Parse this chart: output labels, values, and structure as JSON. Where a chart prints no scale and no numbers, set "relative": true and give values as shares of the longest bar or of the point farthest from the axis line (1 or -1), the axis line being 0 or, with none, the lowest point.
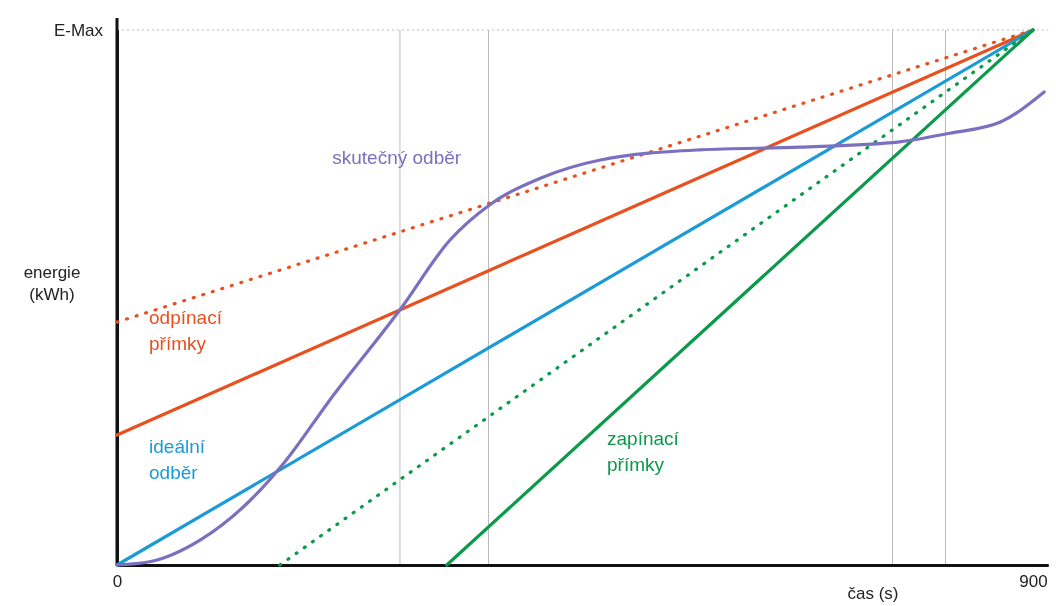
{
  "chart_data": {
    "type": "line",
    "xlabel": "čas (s)",
    "ylabel": "energie (kWh)",
    "xlim": [
      0,
      915
    ],
    "xticks": [
      0,
      900
    ],
    "relative": true,
    "annotations": [
      "E-Max"
    ],
    "grid": false,
    "legend": false,
    "marker": "none",
    "line_style": "solid",
    "series": [
      {
        "color": "#e8501e",
        "x": [
          0,
          900
        ],
        "values": [
          0.454,
          1
        ],
        "line_style": "dotted"
      },
      {
        "name": "odpínací přímky",
        "color": "#e8501e",
        "x": [
          0,
          900
        ],
        "values": [
          0.243,
          1
        ]
      },
      {
        "name": "ideální odběr",
        "color": "#1a9ad6",
        "x": [
          0,
          900
        ],
        "values": [
          0,
          1
        ]
      },
      {
        "color": "#0a9a4a",
        "x": [
          160,
          900
        ],
        "values": [
          0,
          1
        ],
        "line_style": "dotted"
      },
      {
        "name": "zapínací přímky",
        "color": "#0a9a4a",
        "x": [
          324,
          900
        ],
        "values": [
          0,
          1
        ]
      },
      {
        "name": "skutečný odběr",
        "color": "#7b70c0",
        "x": [
          0,
          32,
          82,
          131,
          165,
          209,
          278,
          327,
          366,
          416,
          475,
          573,
          671,
          769,
          818,
          868,
          911
        ],
        "values": [
          0,
          0.006,
          0.047,
          0.121,
          0.193,
          0.308,
          0.477,
          0.607,
          0.673,
          0.723,
          0.757,
          0.776,
          0.781,
          0.791,
          0.807,
          0.828,
          0.884
        ]
      }
    ],
    "ref_lines": [
      {
        "axis": "y",
        "value": 1,
        "color": "#bbbbbb",
        "line_style": "dotted"
      },
      {
        "axis": "x",
        "value": 278,
        "color": "#bbbbbb"
      },
      {
        "axis": "x",
        "value": 365,
        "color": "#bbbbbb"
      },
      {
        "axis": "x",
        "value": 762,
        "color": "#bbbbbb"
      },
      {
        "axis": "x",
        "value": 814,
        "color": "#bbbbbb"
      }
    ]
  }
}
